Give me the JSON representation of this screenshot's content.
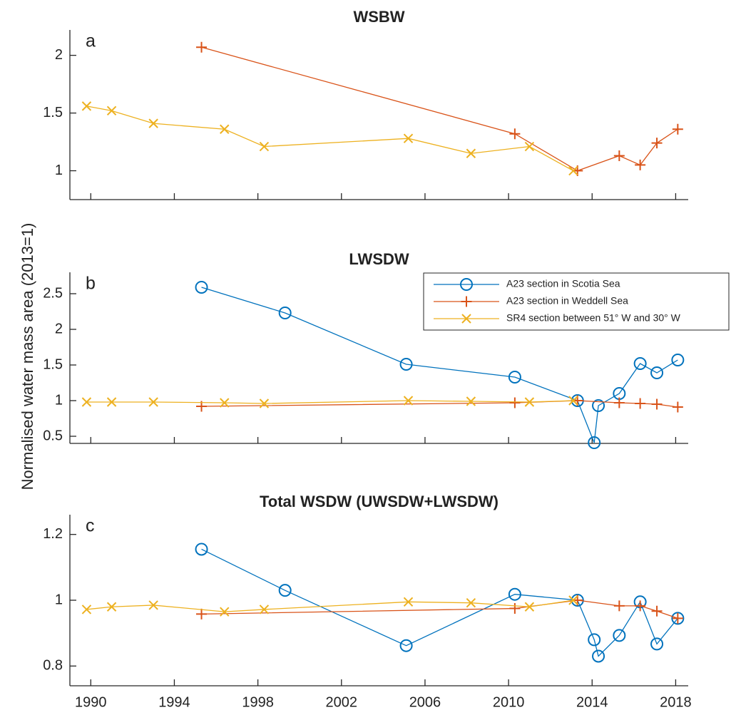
{
  "chart_data": [
    {
      "type": "line",
      "title": "WSBW",
      "annotation": "a",
      "xlim": [
        1989,
        2018.6
      ],
      "xticks": [
        1990,
        1994,
        1998,
        2002,
        2006,
        2010,
        2014,
        2018
      ],
      "ylim": [
        0.75,
        2.22
      ],
      "yticks": [
        1,
        1.5,
        2
      ],
      "series": [
        {
          "color": "#D95319",
          "marker": "+",
          "x": [
            1995.3,
            2010.3,
            2013.3,
            2015.3,
            2016.3,
            2017.1,
            2018.1
          ],
          "values": [
            2.07,
            1.32,
            1.0,
            1.13,
            1.05,
            1.24,
            1.36
          ]
        },
        {
          "color": "#EDB120",
          "marker": "x",
          "x": [
            1989.8,
            1991.0,
            1993.0,
            1996.4,
            1998.3,
            2005.2,
            2008.2,
            2011.0,
            2013.1
          ],
          "values": [
            1.56,
            1.52,
            1.41,
            1.36,
            1.21,
            1.28,
            1.15,
            1.21,
            1.0
          ]
        }
      ]
    },
    {
      "type": "line",
      "title": "LWSDW",
      "annotation": "b",
      "ylabel": "Normalised water mass area (2013=1)",
      "legend": "northeast",
      "xlim": [
        1989,
        2018.6
      ],
      "xticks": [
        1990,
        1994,
        1998,
        2002,
        2006,
        2010,
        2014,
        2018
      ],
      "ylim": [
        0.4,
        2.8
      ],
      "yticks": [
        0.5,
        1,
        1.5,
        2,
        2.5
      ],
      "series": [
        {
          "name": "A23 section in Scotia Sea",
          "color": "#0072BD",
          "marker": "o",
          "x": [
            1995.3,
            1999.3,
            2005.1,
            2010.3,
            2013.3,
            2014.1,
            2014.3,
            2015.3,
            2016.3,
            2017.1,
            2018.1
          ],
          "values": [
            2.59,
            2.23,
            1.51,
            1.33,
            1.0,
            0.41,
            0.93,
            1.1,
            1.52,
            1.39,
            1.57
          ]
        },
        {
          "name": "A23 section in Weddell Sea",
          "color": "#D95319",
          "marker": "+",
          "x": [
            1995.3,
            2010.3,
            2013.3,
            2015.3,
            2016.3,
            2017.1,
            2018.1
          ],
          "values": [
            0.92,
            0.97,
            1.0,
            0.97,
            0.96,
            0.95,
            0.91
          ]
        },
        {
          "name": "SR4 section between 51° W and 30° W",
          "color": "#EDB120",
          "marker": "x",
          "x": [
            1989.8,
            1991.0,
            1993.0,
            1996.4,
            1998.3,
            2005.2,
            2008.2,
            2011.0,
            2013.1
          ],
          "values": [
            0.98,
            0.98,
            0.98,
            0.97,
            0.96,
            1.0,
            0.99,
            0.98,
            1.0
          ]
        }
      ]
    },
    {
      "type": "line",
      "title": "Total WSDW (UWSDW+LWSDW)",
      "annotation": "c",
      "xlim": [
        1989,
        2018.6
      ],
      "xticks": [
        1990,
        1994,
        1998,
        2002,
        2006,
        2010,
        2014,
        2018
      ],
      "ylim": [
        0.74,
        1.26
      ],
      "yticks": [
        0.8,
        1,
        1.2
      ],
      "series": [
        {
          "color": "#0072BD",
          "marker": "o",
          "x": [
            1995.3,
            1999.3,
            2005.1,
            2010.3,
            2013.3,
            2014.1,
            2014.3,
            2015.3,
            2016.3,
            2017.1,
            2018.1
          ],
          "values": [
            1.155,
            1.03,
            0.862,
            1.018,
            1.0,
            0.88,
            0.83,
            0.893,
            0.995,
            0.867,
            0.945
          ]
        },
        {
          "color": "#D95319",
          "marker": "+",
          "x": [
            1995.3,
            2010.3,
            2013.3,
            2015.3,
            2016.3,
            2017.1,
            2018.1
          ],
          "values": [
            0.958,
            0.975,
            1.0,
            0.983,
            0.983,
            0.967,
            0.945
          ]
        },
        {
          "color": "#EDB120",
          "marker": "x",
          "x": [
            1989.8,
            1991.0,
            1993.0,
            1996.4,
            1998.3,
            2005.2,
            2008.2,
            2011.0,
            2013.1
          ],
          "values": [
            0.972,
            0.98,
            0.985,
            0.965,
            0.972,
            0.995,
            0.992,
            0.98,
            1.0
          ]
        }
      ]
    }
  ]
}
